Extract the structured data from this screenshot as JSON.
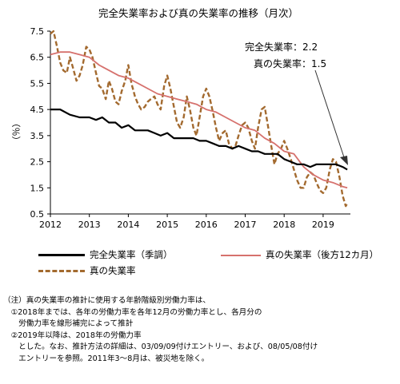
{
  "chart_data": {
    "type": "line",
    "title": "完全失業率および真の失業率の推移（月次）",
    "ylabel": "（％）",
    "xlabel": "",
    "ylim": [
      0.5,
      7.5
    ],
    "yticks": [
      "0.5",
      "1.5",
      "2.5",
      "3.5",
      "4.5",
      "5.5",
      "6.5",
      "7.5"
    ],
    "xlim": [
      2012.0,
      2019.7
    ],
    "xticks": [
      "2012",
      "2013",
      "2014",
      "2015",
      "2016",
      "2017",
      "2018",
      "2019"
    ],
    "grid": false,
    "legend_position": "bottom",
    "annotation": {
      "line1": "完全失業率：2.2",
      "line2": "真の失業率：1.5"
    },
    "series": [
      {
        "name": "完全失業率（季調）",
        "color": "#000000",
        "style": "solid",
        "points": [
          [
            2012.0,
            4.5
          ],
          [
            2012.25,
            4.5
          ],
          [
            2012.5,
            4.3
          ],
          [
            2012.75,
            4.2
          ],
          [
            2013.0,
            4.2
          ],
          [
            2013.17,
            4.1
          ],
          [
            2013.33,
            4.2
          ],
          [
            2013.5,
            4.0
          ],
          [
            2013.67,
            4.0
          ],
          [
            2013.83,
            3.8
          ],
          [
            2014.0,
            3.9
          ],
          [
            2014.17,
            3.7
          ],
          [
            2014.33,
            3.7
          ],
          [
            2014.5,
            3.7
          ],
          [
            2014.67,
            3.6
          ],
          [
            2014.83,
            3.5
          ],
          [
            2015.0,
            3.6
          ],
          [
            2015.17,
            3.4
          ],
          [
            2015.33,
            3.4
          ],
          [
            2015.5,
            3.4
          ],
          [
            2015.67,
            3.4
          ],
          [
            2015.83,
            3.3
          ],
          [
            2016.0,
            3.3
          ],
          [
            2016.17,
            3.2
          ],
          [
            2016.33,
            3.1
          ],
          [
            2016.5,
            3.1
          ],
          [
            2016.67,
            3.0
          ],
          [
            2016.83,
            3.1
          ],
          [
            2017.0,
            3.0
          ],
          [
            2017.17,
            2.9
          ],
          [
            2017.33,
            2.9
          ],
          [
            2017.5,
            2.8
          ],
          [
            2017.67,
            2.8
          ],
          [
            2017.83,
            2.8
          ],
          [
            2018.0,
            2.6
          ],
          [
            2018.17,
            2.5
          ],
          [
            2018.33,
            2.4
          ],
          [
            2018.5,
            2.4
          ],
          [
            2018.67,
            2.3
          ],
          [
            2018.83,
            2.4
          ],
          [
            2019.0,
            2.4
          ],
          [
            2019.17,
            2.4
          ],
          [
            2019.33,
            2.4
          ],
          [
            2019.5,
            2.3
          ],
          [
            2019.62,
            2.2
          ]
        ]
      },
      {
        "name": "真の失業率（後方12カ月）",
        "color": "#d6716d",
        "style": "solid",
        "points": [
          [
            2012.0,
            6.6
          ],
          [
            2012.25,
            6.7
          ],
          [
            2012.5,
            6.7
          ],
          [
            2012.75,
            6.6
          ],
          [
            2013.0,
            6.5
          ],
          [
            2013.25,
            6.2
          ],
          [
            2013.5,
            6.0
          ],
          [
            2013.75,
            5.8
          ],
          [
            2014.0,
            5.7
          ],
          [
            2014.25,
            5.5
          ],
          [
            2014.5,
            5.3
          ],
          [
            2014.75,
            5.1
          ],
          [
            2015.0,
            5.0
          ],
          [
            2015.25,
            4.9
          ],
          [
            2015.5,
            4.8
          ],
          [
            2015.75,
            4.7
          ],
          [
            2016.0,
            4.5
          ],
          [
            2016.25,
            4.4
          ],
          [
            2016.5,
            4.2
          ],
          [
            2016.75,
            4.0
          ],
          [
            2017.0,
            3.8
          ],
          [
            2017.25,
            3.7
          ],
          [
            2017.5,
            3.4
          ],
          [
            2017.75,
            3.2
          ],
          [
            2018.0,
            2.9
          ],
          [
            2018.25,
            2.8
          ],
          [
            2018.5,
            2.3
          ],
          [
            2018.75,
            2.0
          ],
          [
            2019.0,
            1.8
          ],
          [
            2019.25,
            1.7
          ],
          [
            2019.5,
            1.55
          ],
          [
            2019.62,
            1.5
          ]
        ]
      },
      {
        "name": "真の失業率",
        "color": "#a36a2f",
        "style": "dashed",
        "points": [
          [
            2012.0,
            7.4
          ],
          [
            2012.08,
            7.5
          ],
          [
            2012.17,
            6.9
          ],
          [
            2012.25,
            6.3
          ],
          [
            2012.33,
            6.0
          ],
          [
            2012.42,
            5.9
          ],
          [
            2012.5,
            6.5
          ],
          [
            2012.58,
            6.1
          ],
          [
            2012.67,
            5.6
          ],
          [
            2012.75,
            5.8
          ],
          [
            2012.83,
            6.2
          ],
          [
            2012.92,
            6.9
          ],
          [
            2013.0,
            6.8
          ],
          [
            2013.08,
            6.5
          ],
          [
            2013.17,
            5.9
          ],
          [
            2013.25,
            5.4
          ],
          [
            2013.33,
            5.3
          ],
          [
            2013.42,
            4.9
          ],
          [
            2013.5,
            5.6
          ],
          [
            2013.58,
            5.3
          ],
          [
            2013.67,
            4.8
          ],
          [
            2013.75,
            4.7
          ],
          [
            2013.83,
            5.2
          ],
          [
            2013.92,
            5.6
          ],
          [
            2014.0,
            6.2
          ],
          [
            2014.08,
            5.5
          ],
          [
            2014.17,
            5.0
          ],
          [
            2014.25,
            4.7
          ],
          [
            2014.33,
            4.5
          ],
          [
            2014.42,
            4.6
          ],
          [
            2014.5,
            4.8
          ],
          [
            2014.58,
            4.9
          ],
          [
            2014.67,
            5.0
          ],
          [
            2014.75,
            4.7
          ],
          [
            2014.83,
            4.5
          ],
          [
            2014.92,
            5.4
          ],
          [
            2015.0,
            5.8
          ],
          [
            2015.08,
            5.3
          ],
          [
            2015.17,
            4.6
          ],
          [
            2015.25,
            4.0
          ],
          [
            2015.33,
            3.8
          ],
          [
            2015.42,
            4.2
          ],
          [
            2015.5,
            5.0
          ],
          [
            2015.58,
            4.5
          ],
          [
            2015.67,
            3.8
          ],
          [
            2015.75,
            3.5
          ],
          [
            2015.83,
            4.2
          ],
          [
            2015.92,
            5.0
          ],
          [
            2016.0,
            5.3
          ],
          [
            2016.08,
            5.0
          ],
          [
            2016.17,
            4.4
          ],
          [
            2016.25,
            3.8
          ],
          [
            2016.33,
            3.3
          ],
          [
            2016.42,
            3.6
          ],
          [
            2016.5,
            3.7
          ],
          [
            2016.58,
            3.2
          ],
          [
            2016.67,
            3.0
          ],
          [
            2016.75,
            3.1
          ],
          [
            2016.83,
            3.5
          ],
          [
            2016.92,
            3.9
          ],
          [
            2017.0,
            4.0
          ],
          [
            2017.08,
            3.8
          ],
          [
            2017.17,
            3.3
          ],
          [
            2017.25,
            3.0
          ],
          [
            2017.33,
            3.8
          ],
          [
            2017.42,
            4.5
          ],
          [
            2017.5,
            4.6
          ],
          [
            2017.58,
            3.9
          ],
          [
            2017.67,
            3.1
          ],
          [
            2017.75,
            2.4
          ],
          [
            2017.83,
            2.8
          ],
          [
            2017.92,
            3.0
          ],
          [
            2018.0,
            3.3
          ],
          [
            2018.08,
            3.0
          ],
          [
            2018.17,
            2.6
          ],
          [
            2018.25,
            2.2
          ],
          [
            2018.33,
            1.8
          ],
          [
            2018.42,
            1.5
          ],
          [
            2018.5,
            1.5
          ],
          [
            2018.58,
            1.9
          ],
          [
            2018.67,
            2.1
          ],
          [
            2018.75,
            2.0
          ],
          [
            2018.83,
            1.7
          ],
          [
            2018.92,
            1.4
          ],
          [
            2019.0,
            1.3
          ],
          [
            2019.08,
            1.5
          ],
          [
            2019.17,
            2.2
          ],
          [
            2019.25,
            2.6
          ],
          [
            2019.33,
            2.5
          ],
          [
            2019.42,
            1.9
          ],
          [
            2019.5,
            1.2
          ],
          [
            2019.58,
            0.8
          ],
          [
            2019.62,
            0.9
          ]
        ]
      }
    ]
  },
  "legend": {
    "items": [
      {
        "label": "完全失業率（季調）"
      },
      {
        "label": "真の失業率（後方12カ月）"
      },
      {
        "label": "真の失業率"
      }
    ]
  },
  "notes": {
    "lines": [
      "（注）真の失業率の推計に使用する年齢階級別労働力率は、",
      "　①2018年までは、各年の労働力率を各年12月の労働力率とし、各月分の",
      "　　労働力率を線形補完によって推計",
      "　②2019年以降は、2018年の労働力率",
      "　　とした。なお、推計方法の詳細は、03/09/09付けエントリー、および、08/05/08付け",
      "　　エントリーを参照。2011年3～8月は、被災地を除く。"
    ]
  }
}
